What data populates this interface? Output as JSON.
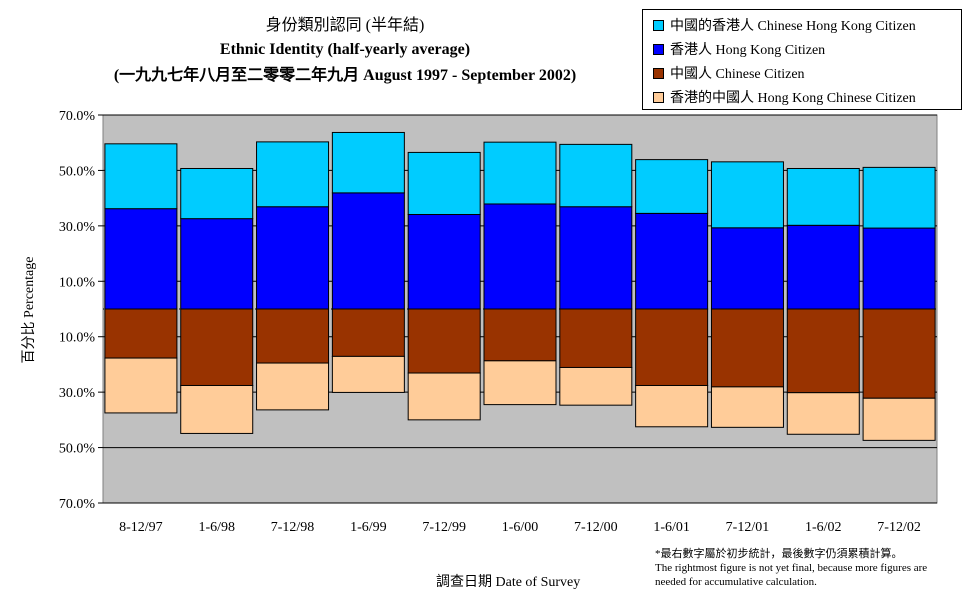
{
  "title_zh": "身份類別認同 (半年結)",
  "title_en": "Ethnic Identity (half-yearly average)",
  "period": "(一九九七年八月至二零零二年九月 August 1997 - September 2002)",
  "y_axis_label": "百分比 Percentage",
  "x_axis_label": "調查日期 Date of Survey",
  "footnote": {
    "zh": "*最右數字屬於初步統計，最後數字仍須累積計算。",
    "en_line1": "The rightmost figure is not yet final, because more figures are",
    "en_line2": "needed for accumulative calculation."
  },
  "legend": [
    {
      "label": "中國的香港人 Chinese Hong Kong Citizen",
      "color": "#00ccff"
    },
    {
      "label": "香港人 Hong Kong Citizen",
      "color": "#0000ff"
    },
    {
      "label": "中國人 Chinese Citizen",
      "color": "#993300"
    },
    {
      "label": "香港的中國人 Hong Kong Chinese Citizen",
      "color": "#ffcc99"
    }
  ],
  "chart_data": {
    "type": "bar",
    "stacked": "diverging",
    "categories": [
      "8-12/97",
      "1-6/98",
      "7-12/98",
      "1-6/99",
      "7-12/99",
      "1-6/00",
      "7-12/00",
      "1-6/01",
      "7-12/01",
      "1-6/02",
      "7-12/02"
    ],
    "y_tick_labels": [
      "70.0%",
      "50.0%",
      "30.0%",
      "10.0%",
      "10.0%",
      "30.0%",
      "50.0%",
      "70.0%"
    ],
    "ylim": [
      -70,
      70
    ],
    "grid": true,
    "plot_background": "#c0c0c0",
    "series": [
      {
        "name": "香港人 Hong Kong Citizen",
        "direction": "up",
        "color": "#0000ff",
        "values": [
          36.2,
          32.6,
          36.9,
          41.9,
          34.1,
          37.9,
          36.9,
          34.5,
          29.3,
          30.2,
          29.2
        ]
      },
      {
        "name": "中國的香港人 Chinese Hong Kong Citizen",
        "direction": "up",
        "color": "#00ccff",
        "values": [
          23.4,
          18.1,
          23.4,
          21.8,
          22.4,
          22.3,
          22.5,
          19.4,
          23.8,
          20.5,
          21.9
        ]
      },
      {
        "name": "中國人 Chinese Citizen",
        "direction": "down",
        "color": "#993300",
        "values": [
          17.7,
          27.6,
          19.5,
          17.1,
          23.1,
          18.7,
          21.1,
          27.6,
          28.1,
          30.2,
          32.2
        ]
      },
      {
        "name": "香港的中國人 Hong Kong Chinese Citizen",
        "direction": "down",
        "color": "#ffcc99",
        "values": [
          19.8,
          17.3,
          16.9,
          13.0,
          16.9,
          15.8,
          13.6,
          14.9,
          14.6,
          15.0,
          15.2
        ]
      }
    ],
    "legend_position": "top-right"
  }
}
